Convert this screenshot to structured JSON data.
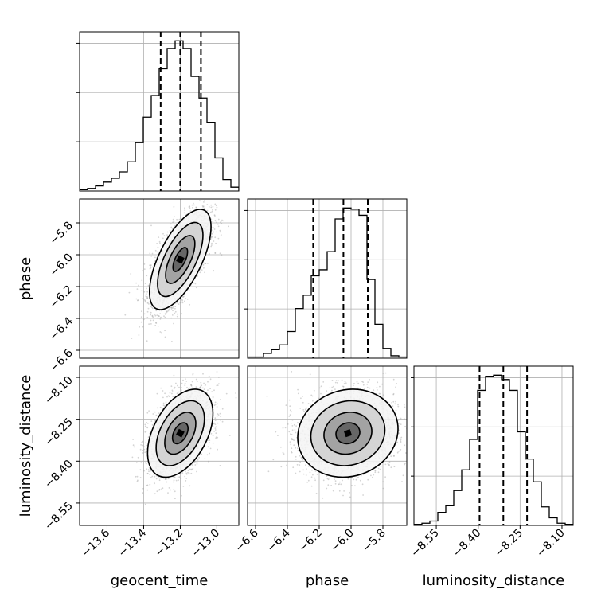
{
  "chart_data": {
    "type": "corner",
    "parameters": [
      {
        "name": "geocent_time",
        "range": [
          -13.75,
          -12.88
        ],
        "ticks": [
          -13.6,
          -13.4,
          -13.2,
          -13.0
        ],
        "tick_labels": [
          "−13.6",
          "−13.4",
          "−13.2",
          "−13.0"
        ],
        "quantiles": [
          -13.307,
          -13.2,
          -13.087
        ],
        "hist_bin_edges_start": -13.75,
        "hist_bin_width": 0.0435,
        "hist_counts": [
          1,
          2,
          4,
          7,
          10,
          15,
          23,
          38,
          58,
          75,
          96,
          112,
          118,
          112,
          90,
          73,
          54,
          26,
          9,
          3
        ]
      },
      {
        "name": "phase",
        "range": [
          -6.65,
          -5.65
        ],
        "ticks": [
          -6.6,
          -6.4,
          -6.2,
          -6.0,
          -5.8
        ],
        "tick_labels": [
          "−6.6",
          "−6.4",
          "−6.2",
          "−6.0",
          "−5.8"
        ],
        "quantiles": [
          -6.238,
          -6.048,
          -5.895
        ],
        "hist_bin_edges_start": -6.65,
        "hist_bin_width": 0.05,
        "hist_counts": [
          1,
          1,
          4,
          7,
          11,
          22,
          41,
          52,
          68,
          73,
          88,
          115,
          124,
          123,
          118,
          65,
          28,
          8,
          2,
          1
        ]
      },
      {
        "name": "luminosity_distance",
        "range": [
          -8.63,
          -8.06
        ],
        "ticks": [
          -8.55,
          -8.4,
          -8.25,
          -8.1
        ],
        "tick_labels": [
          "−8.55",
          "−8.40",
          "−8.25",
          "−8.10"
        ],
        "quantiles": [
          -8.395,
          -8.31,
          -8.225
        ],
        "hist_bin_edges_start": -8.63,
        "hist_bin_width": 0.0285,
        "hist_counts": [
          1,
          2,
          4,
          12,
          18,
          32,
          51,
          79,
          124,
          137,
          138,
          134,
          124,
          86,
          61,
          40,
          17,
          7,
          2,
          1
        ]
      }
    ],
    "pairs": [
      {
        "x": "geocent_time",
        "y": "phase",
        "mean": [
          -13.2,
          -6.03
        ],
        "sd": [
          0.08,
          0.15
        ],
        "corr": 0.65
      },
      {
        "x": "geocent_time",
        "y": "luminosity_distance",
        "mean": [
          -13.2,
          -8.3
        ],
        "sd": [
          0.085,
          0.075
        ],
        "corr": 0.45
      },
      {
        "x": "phase",
        "y": "luminosity_distance",
        "mean": [
          -6.02,
          -8.3
        ],
        "sd": [
          0.15,
          0.075
        ],
        "corr": 0.1
      }
    ],
    "grid": true,
    "contour_levels": 4
  }
}
